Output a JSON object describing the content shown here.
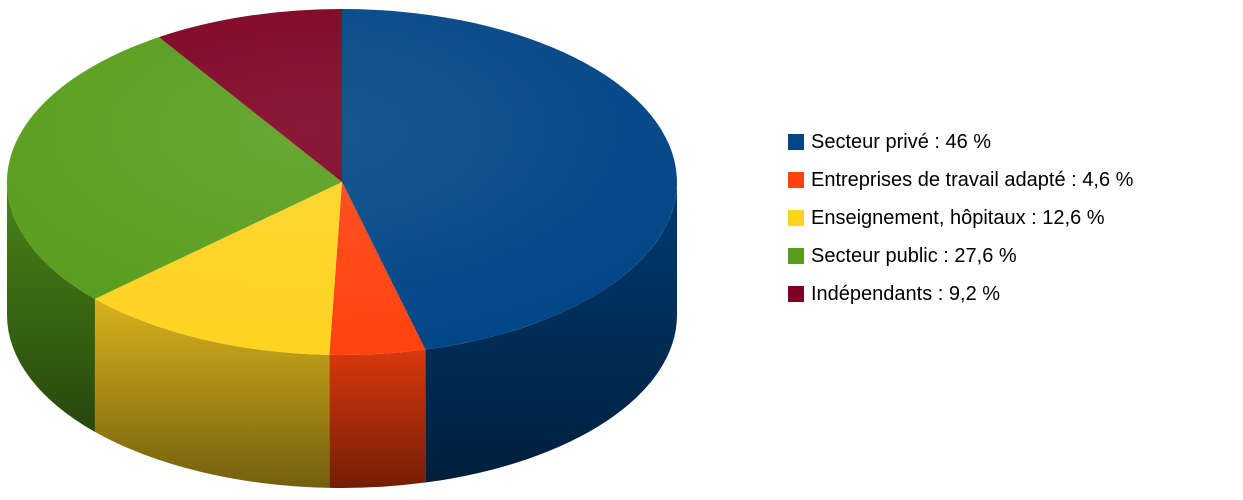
{
  "chart_data": {
    "type": "pie",
    "title": "",
    "unit": "%",
    "three_d": true,
    "legend_position": "right",
    "start_angle_deg": 0,
    "direction": "clockwise",
    "slices": [
      {
        "label": "Secteur privé : 46 %",
        "value": 46,
        "color": "#004586"
      },
      {
        "label": "Entreprises de travail adapté : 4,6 %",
        "value": 4.6,
        "color": "#ff420e"
      },
      {
        "label": "Enseignement, hôpitaux : 12,6 %",
        "value": 12.6,
        "color": "#ffd320"
      },
      {
        "label": "Secteur public : 27,6 %",
        "value": 27.6,
        "color": "#579d1c"
      },
      {
        "label": "Indépendants : 9,2 %",
        "value": 9.2,
        "color": "#7e0021"
      }
    ]
  }
}
